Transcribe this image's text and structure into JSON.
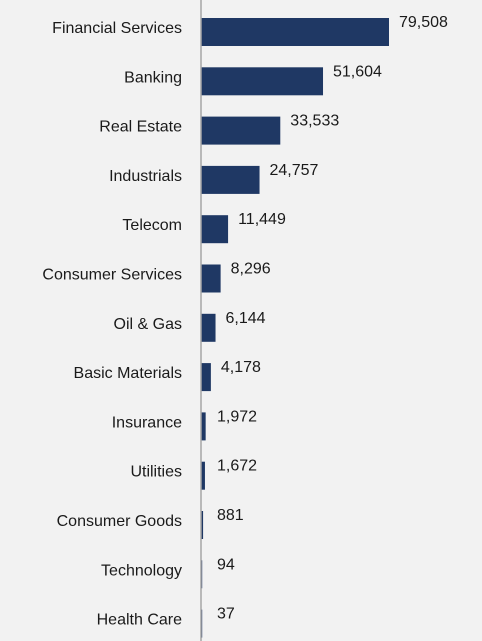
{
  "chart_data": {
    "type": "bar",
    "orientation": "horizontal",
    "title": "",
    "xlabel": "",
    "ylabel": "",
    "categories": [
      "Financial Services",
      "Banking",
      "Real Estate",
      "Industrials",
      "Telecom",
      "Consumer Services",
      "Oil & Gas",
      "Basic Materials",
      "Insurance",
      "Utilities",
      "Consumer Goods",
      "Technology",
      "Health Care"
    ],
    "values": [
      79508,
      51604,
      33533,
      24757,
      11449,
      8296,
      6144,
      4178,
      1972,
      1672,
      881,
      94,
      37
    ],
    "value_labels": [
      "79,508",
      "51,604",
      "33,533",
      "24,757",
      "11,449",
      "8,296",
      "6,144",
      "4,178",
      "1,972",
      "1,672",
      "881",
      "94",
      "37"
    ],
    "xlim": [
      0,
      79508
    ],
    "grid": false,
    "legend": "none",
    "bar_color": "#1f3864",
    "axis_color": "#a6a6a6",
    "background_color": "#f2f2f2"
  }
}
